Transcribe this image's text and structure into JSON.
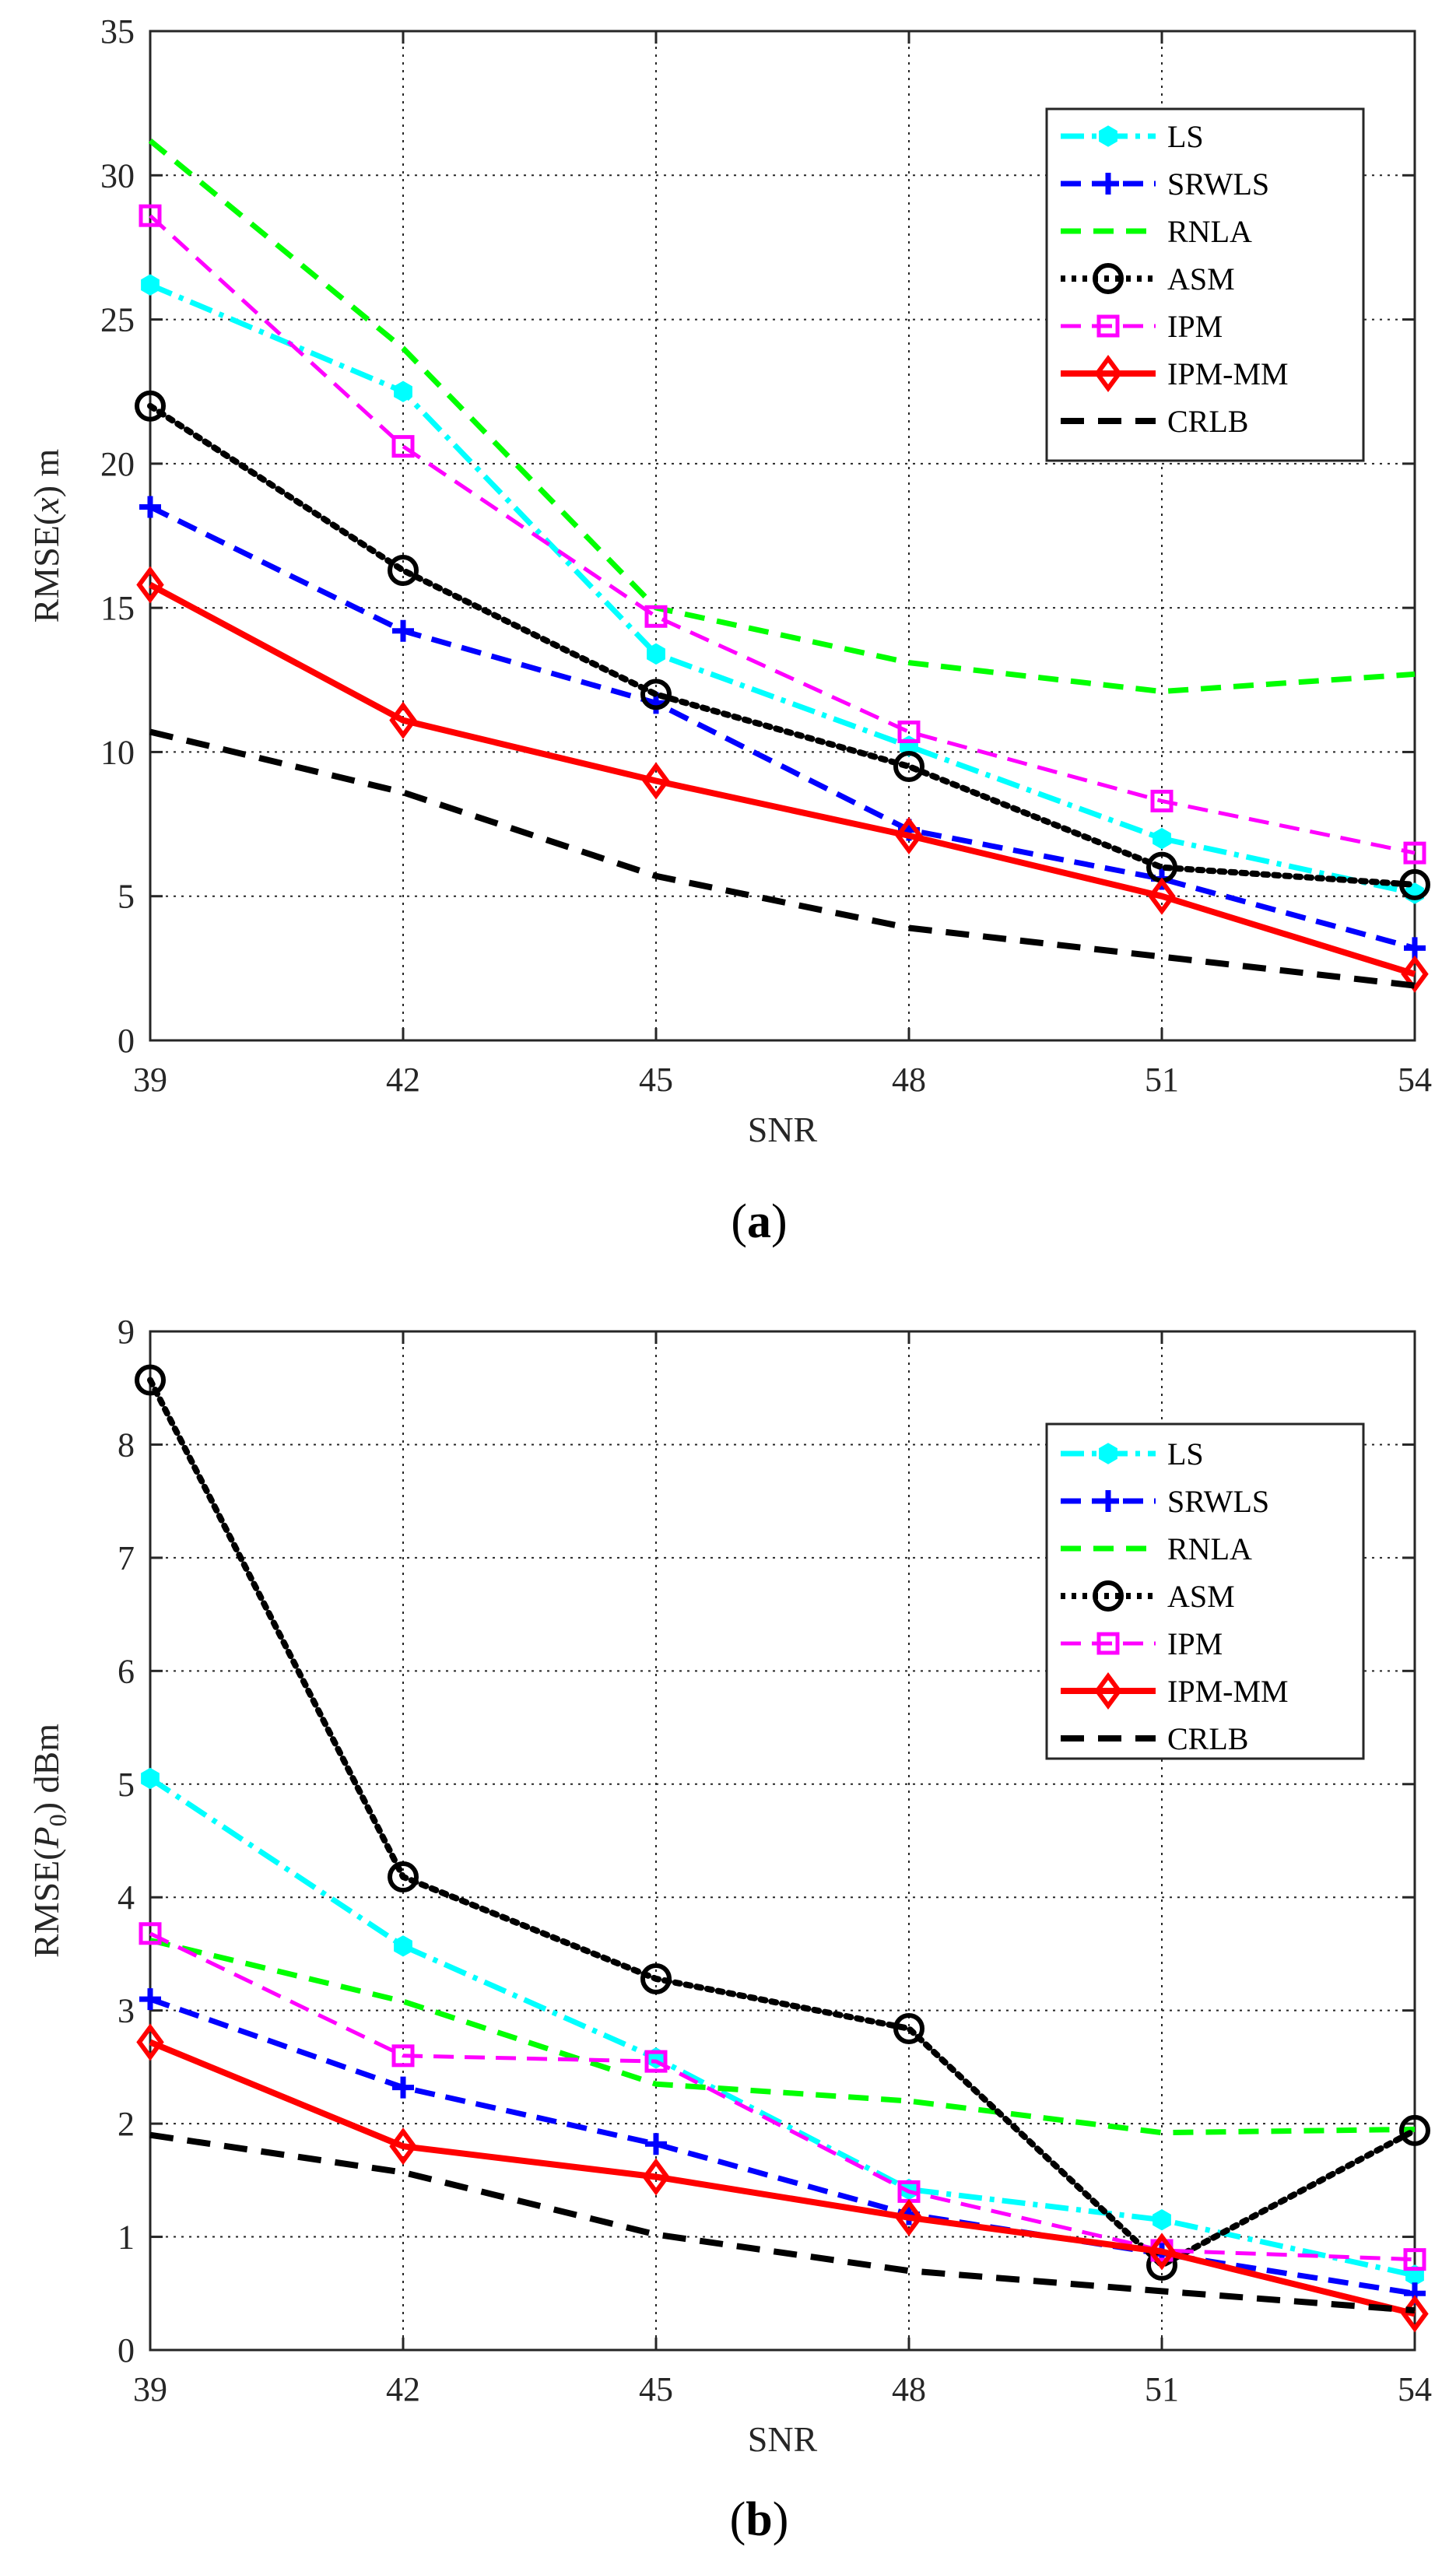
{
  "chart_data": [
    {
      "type": "line",
      "caption_open": "(",
      "caption_letter": "a",
      "caption_close": ")",
      "xlabel": "SNR",
      "ylabel": "RMSE(x) m",
      "ylabel_parts": [
        "RMSE(",
        "x",
        ") m"
      ],
      "x": [
        39,
        42,
        45,
        48,
        51,
        54
      ],
      "xlim": [
        39,
        54
      ],
      "ylim": [
        0,
        35
      ],
      "yticks": [
        0,
        5,
        10,
        15,
        20,
        25,
        30,
        35
      ],
      "grid": true,
      "legend_position": "top-right",
      "series": [
        {
          "name": "LS",
          "values": [
            26.2,
            22.5,
            13.4,
            10.2,
            7.0,
            5.1
          ]
        },
        {
          "name": "SRWLS",
          "values": [
            18.5,
            14.2,
            11.7,
            7.3,
            5.6,
            3.2
          ]
        },
        {
          "name": "RNLA",
          "values": [
            31.2,
            24.0,
            15.0,
            13.1,
            12.1,
            12.7
          ]
        },
        {
          "name": "ASM",
          "values": [
            22.0,
            16.3,
            12.0,
            9.5,
            6.0,
            5.4
          ]
        },
        {
          "name": "IPM",
          "values": [
            28.6,
            20.6,
            14.7,
            10.7,
            8.3,
            6.5
          ]
        },
        {
          "name": "IPM-MM",
          "values": [
            15.8,
            11.1,
            9.0,
            7.1,
            5.0,
            2.3
          ]
        },
        {
          "name": "CRLB",
          "values": [
            10.7,
            8.6,
            5.7,
            3.9,
            2.9,
            1.9
          ]
        }
      ]
    },
    {
      "type": "line",
      "caption_open": "(",
      "caption_letter": "b",
      "caption_close": ")",
      "xlabel": "SNR",
      "ylabel": "RMSE(P0) dBm",
      "ylabel_parts": [
        "RMSE(",
        "P",
        "0",
        ") dBm"
      ],
      "x": [
        39,
        42,
        45,
        48,
        51,
        54
      ],
      "xlim": [
        39,
        54
      ],
      "ylim": [
        0,
        9
      ],
      "yticks": [
        0,
        1,
        2,
        3,
        4,
        5,
        6,
        7,
        8,
        9
      ],
      "grid": true,
      "legend_position": "top-right",
      "series": [
        {
          "name": "LS",
          "values": [
            5.05,
            3.57,
            2.58,
            1.42,
            1.15,
            0.66
          ]
        },
        {
          "name": "SRWLS",
          "values": [
            3.1,
            2.32,
            1.82,
            1.2,
            0.85,
            0.5
          ]
        },
        {
          "name": "RNLA",
          "values": [
            3.62,
            3.08,
            2.35,
            2.2,
            1.92,
            1.95
          ]
        },
        {
          "name": "ASM",
          "values": [
            8.57,
            4.18,
            3.28,
            2.84,
            0.75,
            1.94
          ]
        },
        {
          "name": "IPM",
          "values": [
            3.68,
            2.6,
            2.55,
            1.4,
            0.88,
            0.8
          ]
        },
        {
          "name": "IPM-MM",
          "values": [
            2.72,
            1.8,
            1.53,
            1.17,
            0.87,
            0.32
          ]
        },
        {
          "name": "CRLB",
          "values": [
            1.9,
            1.57,
            1.02,
            0.7,
            0.52,
            0.35
          ]
        }
      ]
    }
  ],
  "colors": {
    "LS": "#00ffff",
    "SRWLS": "#0000ff",
    "RNLA": "#00ff00",
    "ASM": "#000000",
    "IPM": "#ff00ff",
    "IPM-MM": "#ff0000",
    "CRLB": "#000000",
    "grid": "#262626",
    "axes": "#262626"
  }
}
